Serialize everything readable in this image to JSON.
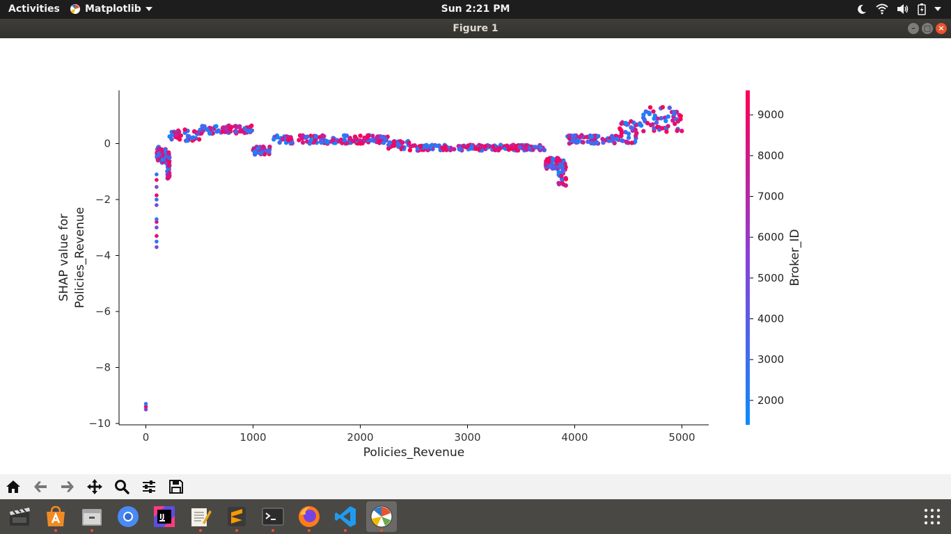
{
  "topbar": {
    "activities": "Activities",
    "app_name": "Matplotlib",
    "clock": "Sun  2:21 PM"
  },
  "window": {
    "title": "Figure 1"
  },
  "toolbar": {
    "buttons": [
      "home-icon",
      "back-icon",
      "forward-icon",
      "pan-icon",
      "zoom-icon",
      "configure-icon",
      "save-icon"
    ]
  },
  "dock": {
    "apps": [
      "video-editor",
      "software-center",
      "files",
      "chromium",
      "intellij",
      "text-editor",
      "sublime-text",
      "terminal",
      "firefox",
      "vscode",
      "matplotlib"
    ]
  },
  "colors": {
    "low": "#0b8bff",
    "mid": "#8a40d8",
    "high": "#ff0052"
  },
  "chart_data": {
    "type": "scatter",
    "xlabel": "Policies_Revenue",
    "ylabel": [
      "SHAP value for",
      "Policies_Revenue"
    ],
    "xlim": [
      -250,
      5250
    ],
    "ylim": [
      -10.05,
      1.9
    ],
    "xticks": [
      0,
      1000,
      2000,
      3000,
      4000,
      5000
    ],
    "yticks": [
      0,
      -2,
      -4,
      -6,
      -8,
      -10
    ],
    "ytick_labels": [
      "0",
      "−2",
      "−4",
      "−6",
      "−8",
      "−10"
    ],
    "colorbar": {
      "label": "Broker_ID",
      "range": [
        1400,
        9600
      ],
      "ticks": [
        2000,
        3000,
        4000,
        5000,
        6000,
        7000,
        8000,
        9000
      ]
    },
    "bands": [
      {
        "x0": 100,
        "x1": 140,
        "y0": -0.6,
        "y1": -0.1
      },
      {
        "x0": 140,
        "x1": 200,
        "y0": -0.7,
        "y1": -0.2
      },
      {
        "x0": 200,
        "x1": 220,
        "y0": -1.25,
        "y1": -0.3
      },
      {
        "x0": 220,
        "x1": 510,
        "y0": 0.1,
        "y1": 0.5
      },
      {
        "x0": 510,
        "x1": 1000,
        "y0": 0.35,
        "y1": 0.65
      },
      {
        "x0": 1000,
        "x1": 1160,
        "y0": -0.4,
        "y1": -0.1
      },
      {
        "x0": 1160,
        "x1": 2260,
        "y0": 0.0,
        "y1": 0.3
      },
      {
        "x0": 2260,
        "x1": 2460,
        "y0": -0.2,
        "y1": 0.1
      },
      {
        "x0": 2460,
        "x1": 3730,
        "y0": -0.25,
        "y1": -0.05
      },
      {
        "x0": 3730,
        "x1": 3850,
        "y0": -0.95,
        "y1": -0.5
      },
      {
        "x0": 3850,
        "x1": 3920,
        "y0": -1.5,
        "y1": -0.6
      },
      {
        "x0": 3920,
        "x1": 4420,
        "y0": 0.0,
        "y1": 0.3
      },
      {
        "x0": 4420,
        "x1": 4620,
        "y0": 0.0,
        "y1": 0.8
      },
      {
        "x0": 4620,
        "x1": 5000,
        "y0": 0.4,
        "y1": 1.3
      }
    ],
    "outliers": [
      {
        "x": 0,
        "y": -9.5
      },
      {
        "x": 0,
        "y": -9.4
      },
      {
        "x": 0,
        "y": -9.3
      },
      {
        "x": 100,
        "y": -3.7
      },
      {
        "x": 100,
        "y": -3.5
      },
      {
        "x": 100,
        "y": -3.3
      },
      {
        "x": 100,
        "y": -3.0
      },
      {
        "x": 100,
        "y": -2.8
      },
      {
        "x": 100,
        "y": -2.7
      },
      {
        "x": 100,
        "y": -2.2
      },
      {
        "x": 100,
        "y": -2.0
      },
      {
        "x": 100,
        "y": -1.85
      },
      {
        "x": 100,
        "y": -1.55
      },
      {
        "x": 100,
        "y": -1.3
      },
      {
        "x": 100,
        "y": -1.1
      }
    ]
  }
}
